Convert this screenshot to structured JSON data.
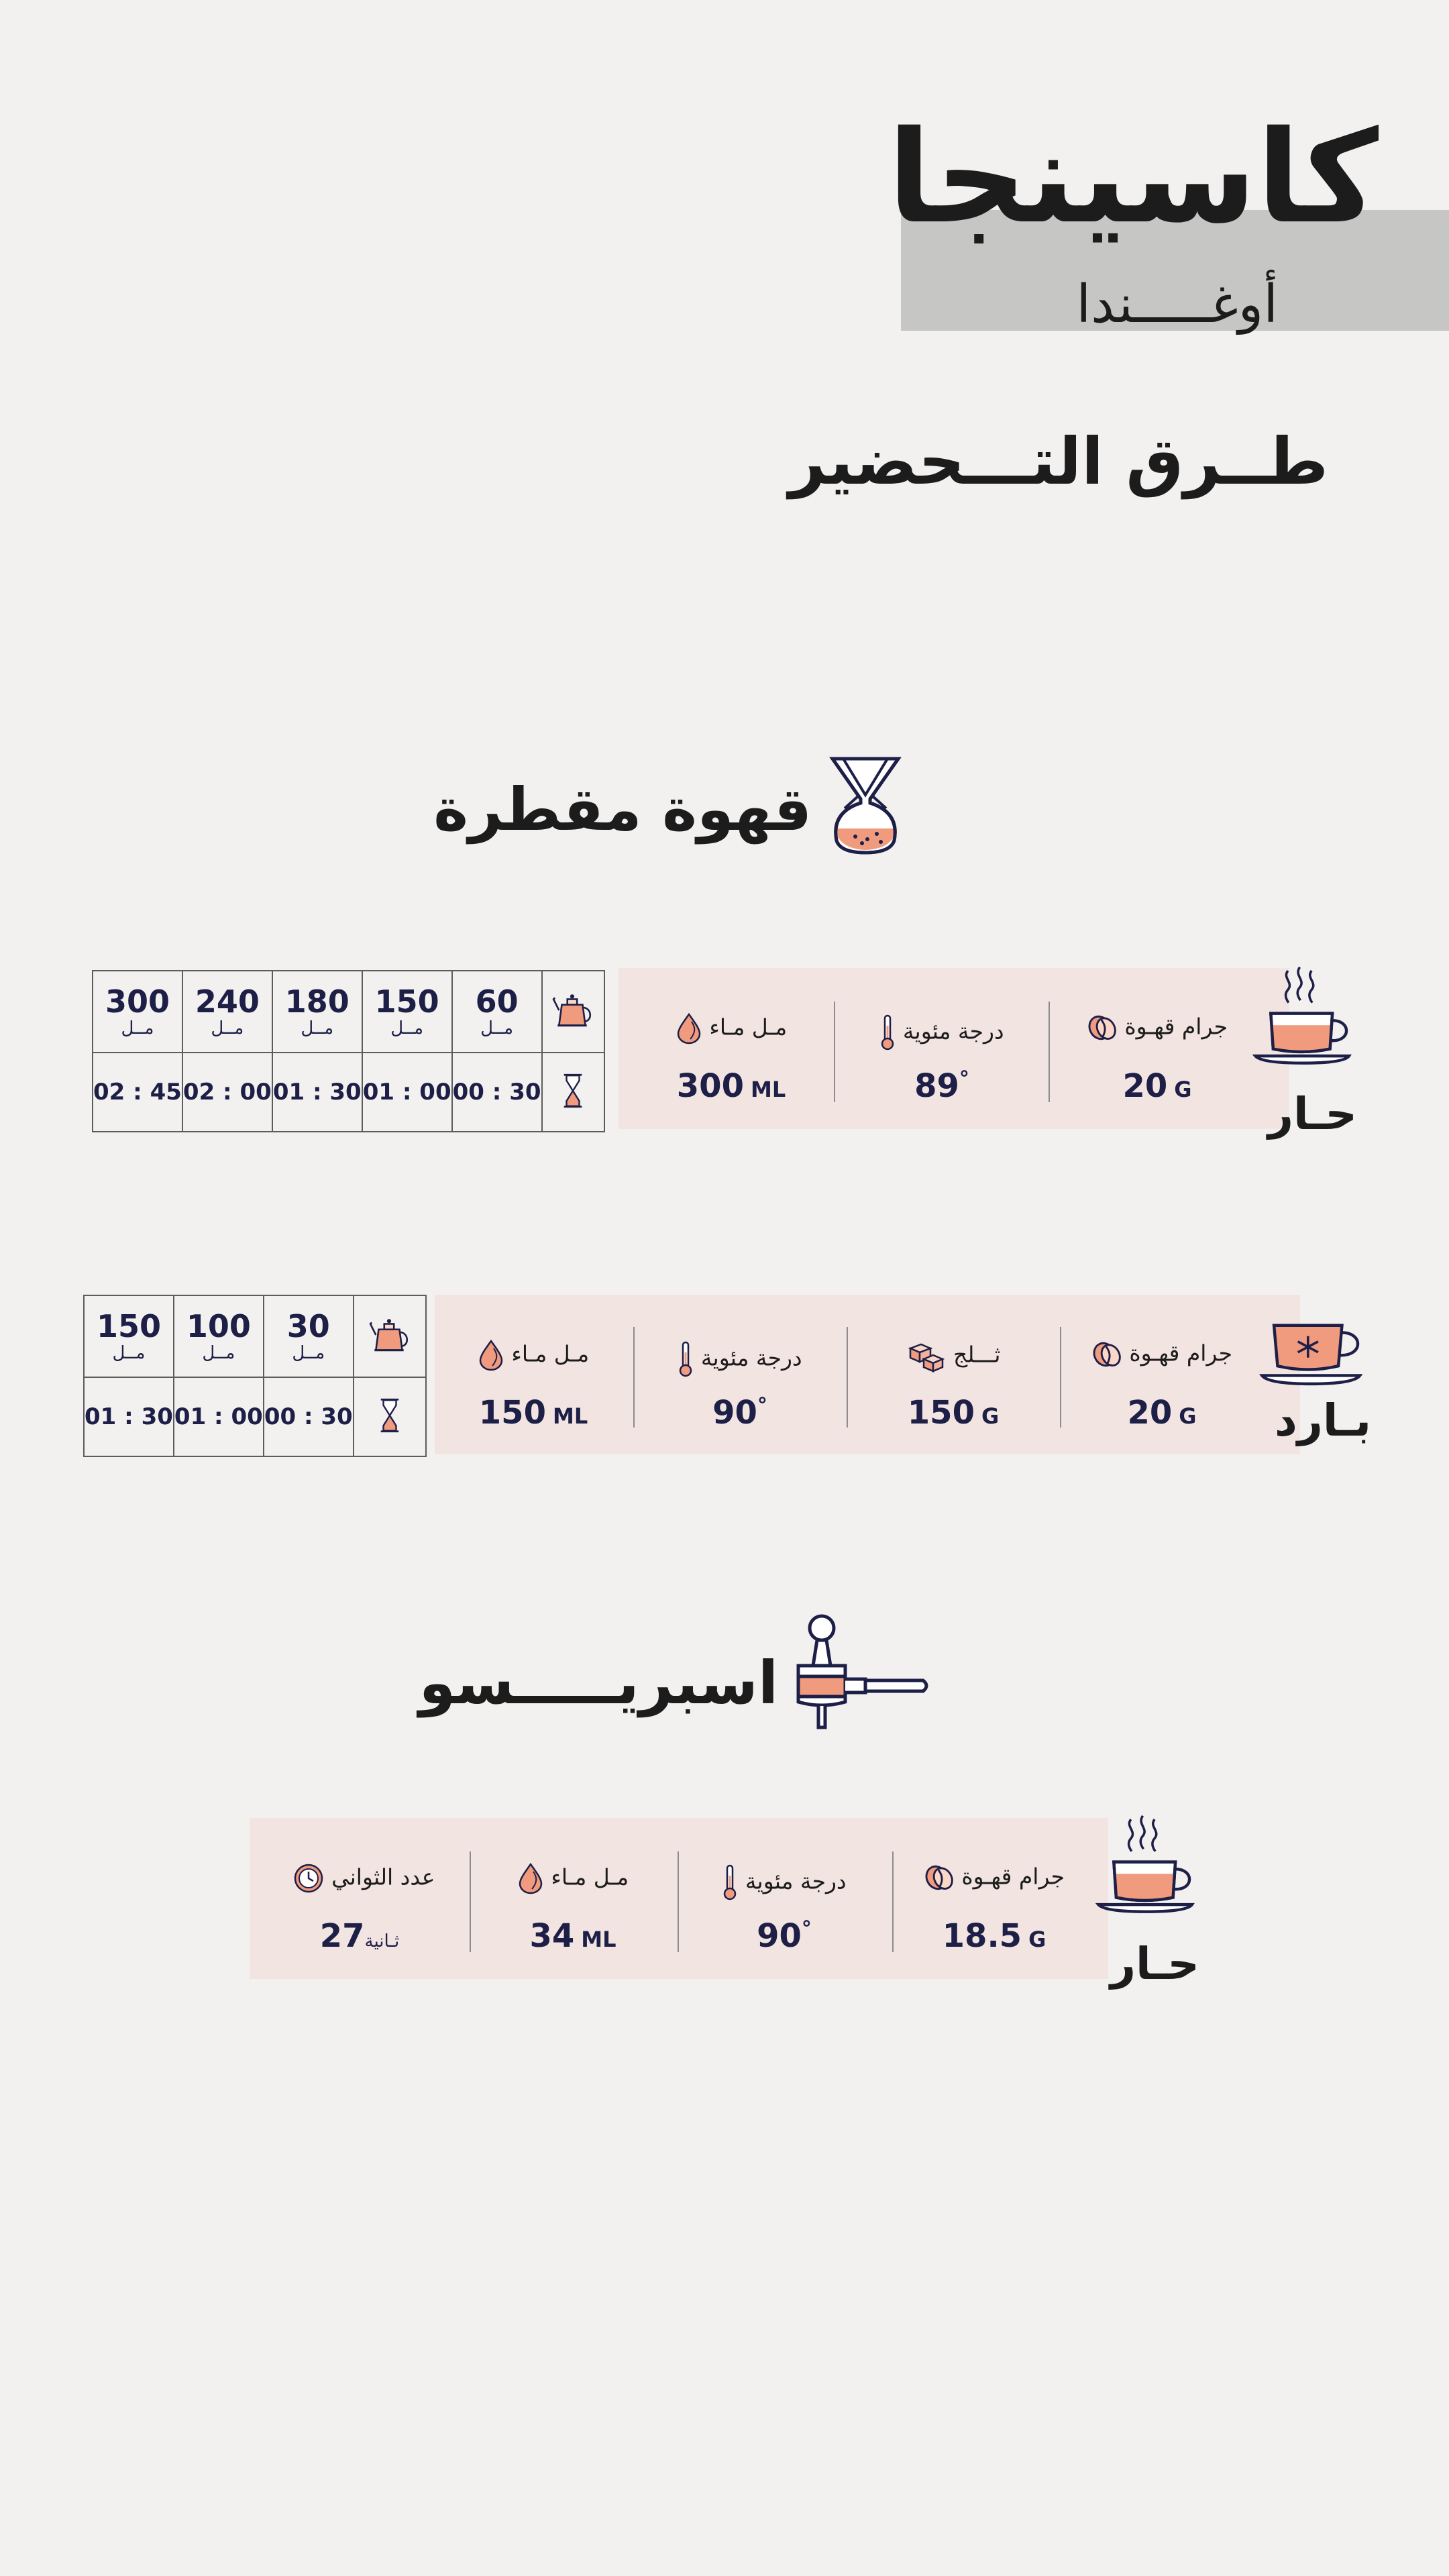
{
  "header": {
    "brand": "كاسينجا",
    "origin": "أوغـــــندا",
    "subtitle": "طــرق التـــحضير"
  },
  "colors": {
    "accent": "#f09a7e",
    "panel": "#f2e4e1",
    "navy": "#1d1f47",
    "band": "#c6c6c5"
  },
  "drip": {
    "title": "قهوة مقطرة",
    "icon": "chemex-icon",
    "hot": {
      "label": "حـار",
      "icon": "hot-cup-icon",
      "stats": [
        {
          "icon": "coffee-bean-icon",
          "label": "جرام قهـوة",
          "value": "20",
          "unit": "G"
        },
        {
          "icon": "thermometer-icon",
          "label": "درجة مئوية",
          "value": "89",
          "deg": "°"
        },
        {
          "icon": "water-drop-icon",
          "label": "مـل مـاء",
          "value": "300",
          "unit": "ML"
        }
      ],
      "schedule": {
        "icons": [
          "kettle-icon",
          "hourglass-icon"
        ],
        "unit": "مــل",
        "ml": [
          "60",
          "150",
          "180",
          "240",
          "300"
        ],
        "times": [
          "00 : 30",
          "01 : 00",
          "01 : 30",
          "02 : 00",
          "02 : 45"
        ]
      }
    },
    "cold": {
      "label": "بـارد",
      "icon": "iced-cup-icon",
      "stats": [
        {
          "icon": "coffee-bean-icon",
          "label": "جرام قهـوة",
          "value": "20",
          "unit": "G"
        },
        {
          "icon": "ice-cubes-icon",
          "label": "ثـــلج",
          "value": "150",
          "unit": "G"
        },
        {
          "icon": "thermometer-icon",
          "label": "درجة مئوية",
          "value": "90",
          "deg": "°"
        },
        {
          "icon": "water-drop-icon",
          "label": "مـل مـاء",
          "value": "150",
          "unit": "ML"
        }
      ],
      "schedule": {
        "icons": [
          "kettle-icon",
          "hourglass-icon"
        ],
        "unit": "مــل",
        "ml": [
          "30",
          "100",
          "150"
        ],
        "times": [
          "00 : 30",
          "01 : 00",
          "01 : 30"
        ]
      }
    }
  },
  "espresso": {
    "title": "اسبريـــــسو",
    "icon": "portafilter-icon",
    "hot": {
      "label": "حـار",
      "icon": "hot-cup-icon",
      "stats": [
        {
          "icon": "coffee-bean-icon",
          "label": "جرام قهـوة",
          "value": "18.5",
          "unit": "G"
        },
        {
          "icon": "thermometer-icon",
          "label": "درجة مئوية",
          "value": "90",
          "deg": "°"
        },
        {
          "icon": "water-drop-icon",
          "label": "مـل مـاء",
          "value": "34",
          "unit": "ML"
        },
        {
          "icon": "clock-icon",
          "label": "عدد الثواني",
          "value": "27",
          "unit": "ثـانية"
        }
      ]
    }
  }
}
